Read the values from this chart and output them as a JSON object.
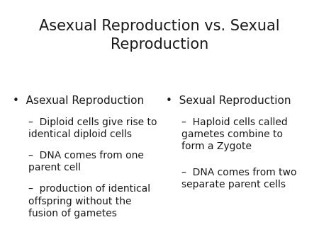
{
  "title_line1": "Asexual Reproduction vs. Sexual",
  "title_line2": "Reproduction",
  "background_color": "#ffffff",
  "text_color": "#1a1a1a",
  "title_fontsize": 15,
  "bullet_fontsize": 11,
  "sub_fontsize": 10,
  "left_bullet": "Asexual Reproduction",
  "left_sub": [
    "Diploid cells give rise to\nidentical diploid cells",
    "DNA comes from one\nparent cell",
    "production of identical\noffspring without the\nfusion of gametes"
  ],
  "right_bullet": "Sexual Reproduction",
  "right_sub": [
    "Haploid cells called\ngametes combine to\nform a Zygote",
    "DNA comes from two\nseparate parent cells"
  ]
}
